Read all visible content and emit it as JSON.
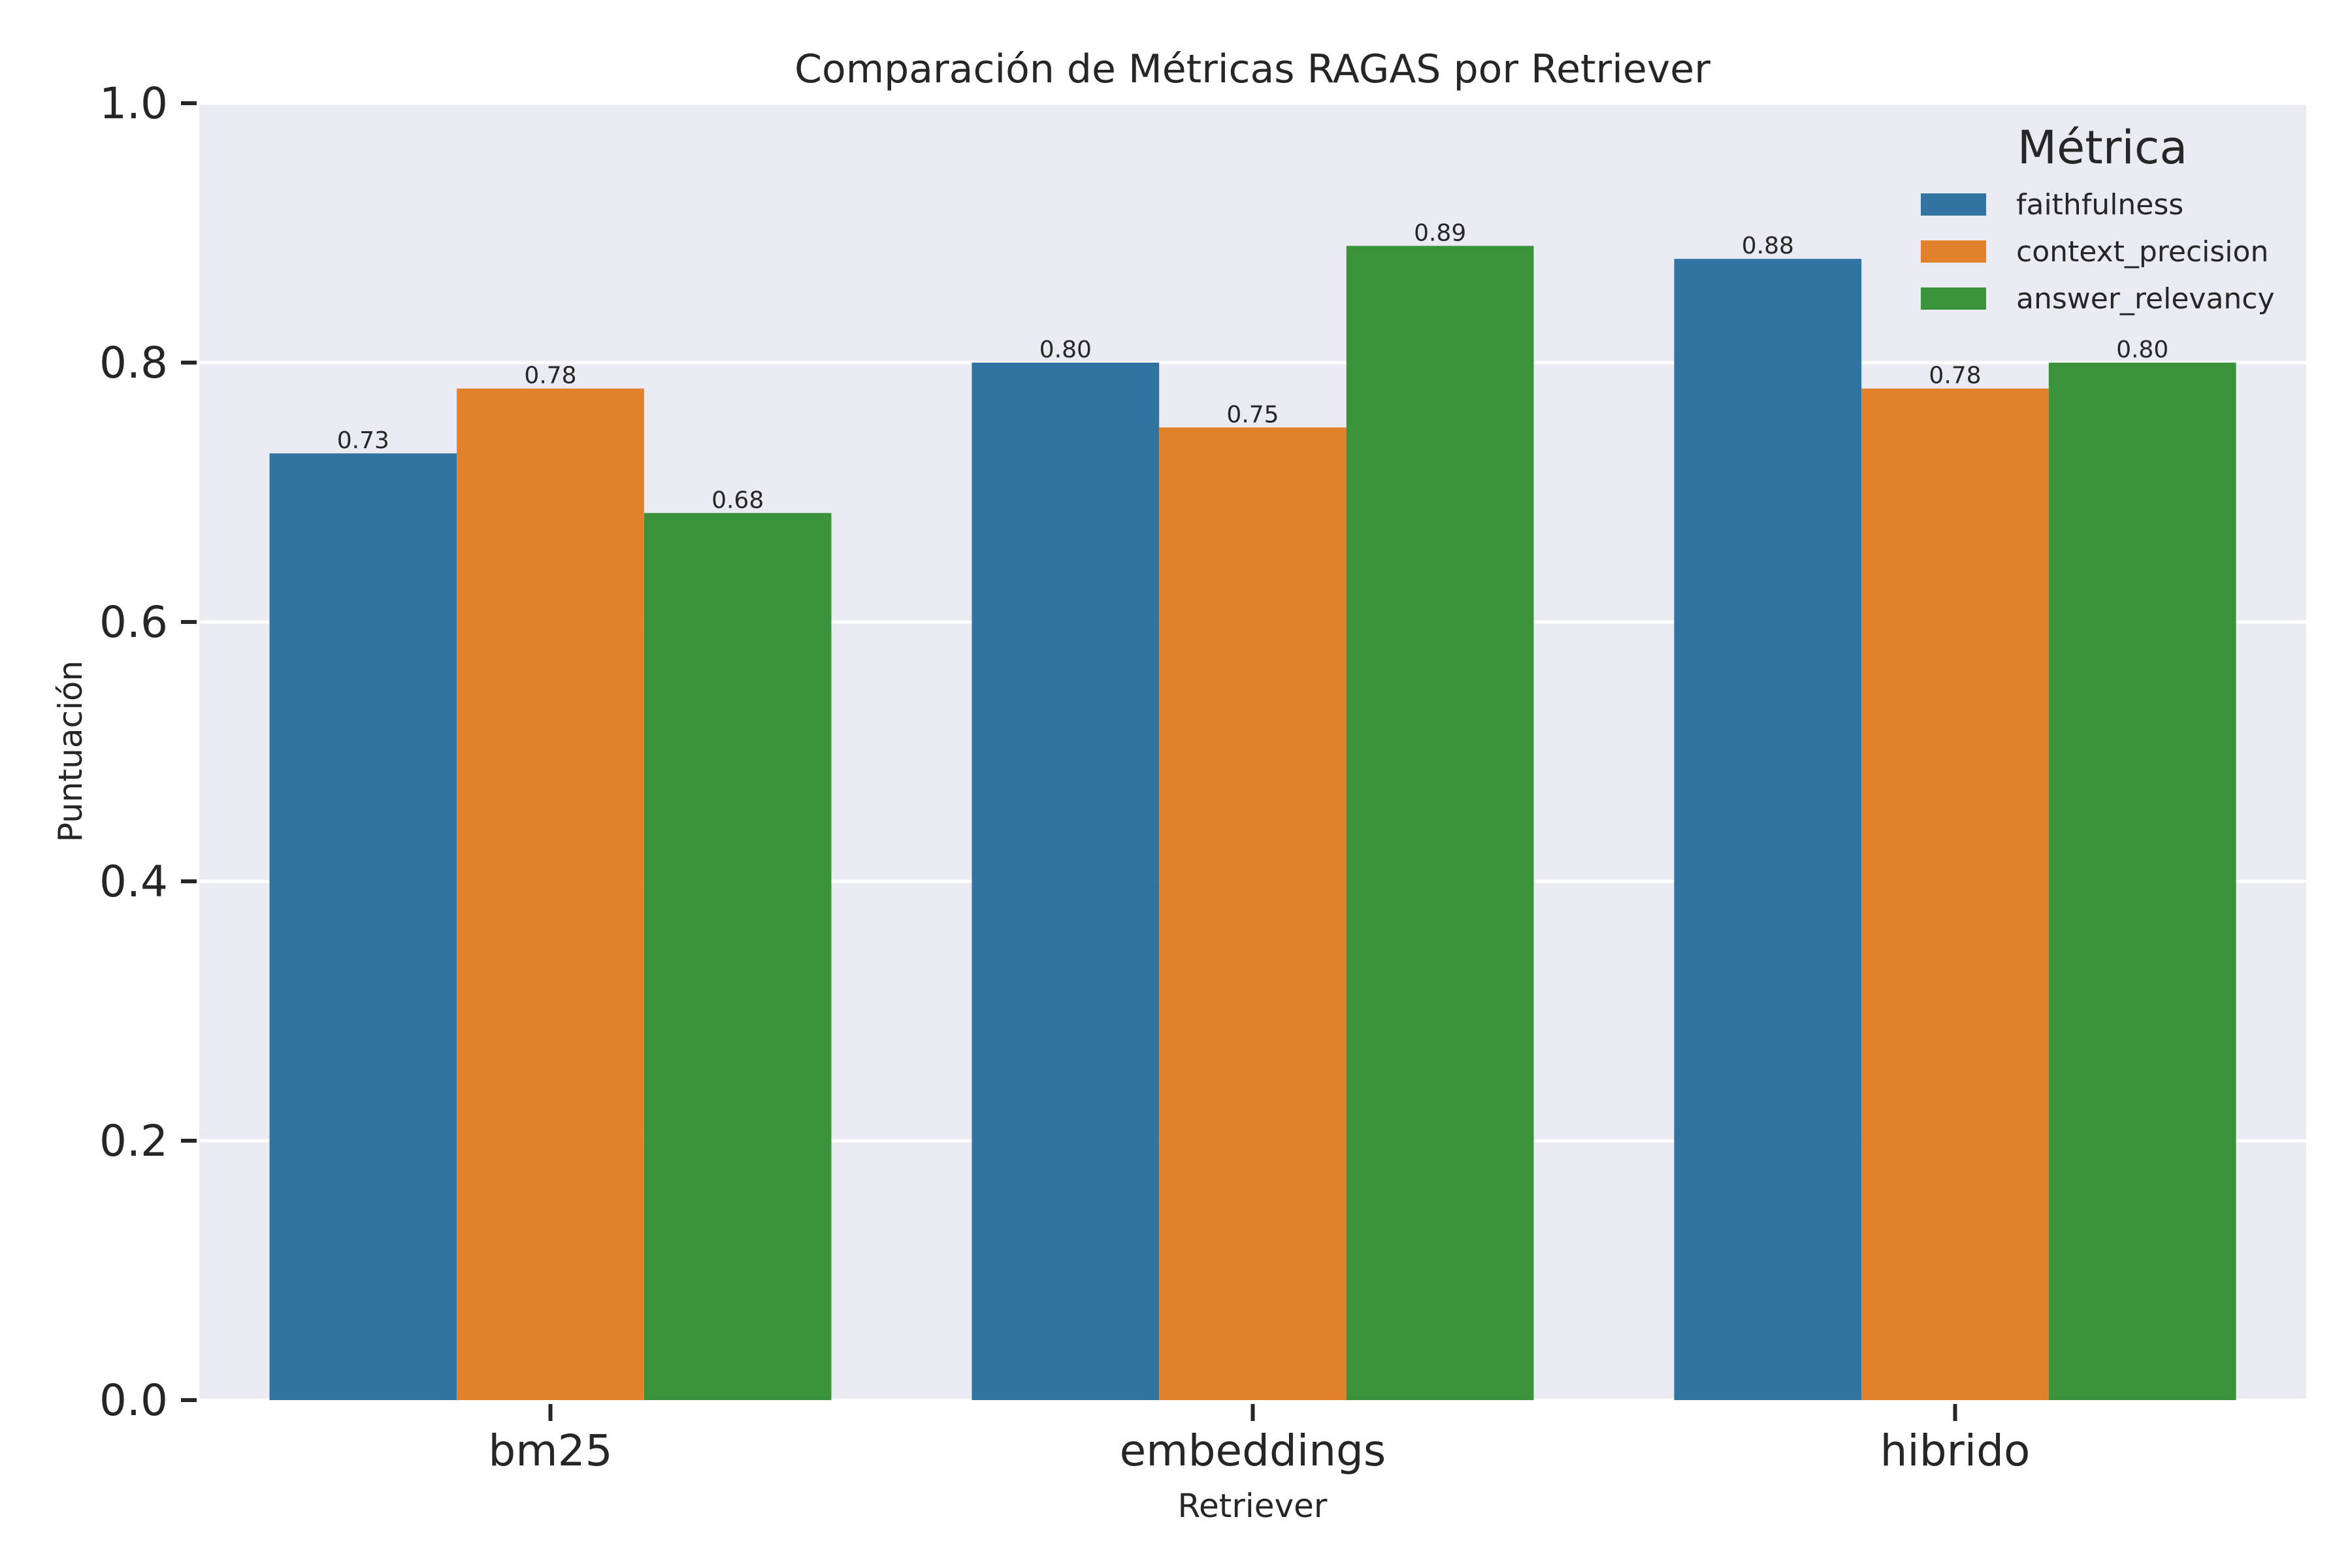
{
  "chart_data": {
    "type": "bar",
    "title": "Comparación de Métricas RAGAS por Retriever",
    "xlabel": "Retriever",
    "ylabel": "Puntuación",
    "ylim": [
      0,
      1.0
    ],
    "yticks": [
      0.0,
      0.2,
      0.4,
      0.6,
      0.8,
      1.0
    ],
    "ytick_labels": [
      "0.0",
      "0.2",
      "0.4",
      "0.6",
      "0.8",
      "1.0"
    ],
    "grid": true,
    "legend": {
      "title": "Métrica",
      "placement": "top-right"
    },
    "categories": [
      "bm25",
      "embeddings",
      "hibrido"
    ],
    "series": [
      {
        "name": "faithfulness",
        "color": "#3274a1",
        "values": [
          0.73,
          0.8,
          0.88
        ],
        "labels": [
          "0.73",
          "0.80",
          "0.88"
        ]
      },
      {
        "name": "context_precision",
        "color": "#e1812c",
        "values": [
          0.78,
          0.75,
          0.78
        ],
        "labels": [
          "0.78",
          "0.75",
          "0.78"
        ]
      },
      {
        "name": "answer_relevancy",
        "color": "#3a923a",
        "values": [
          0.684,
          0.89,
          0.8
        ],
        "labels": [
          "0.68",
          "0.89",
          "0.80"
        ]
      }
    ]
  }
}
